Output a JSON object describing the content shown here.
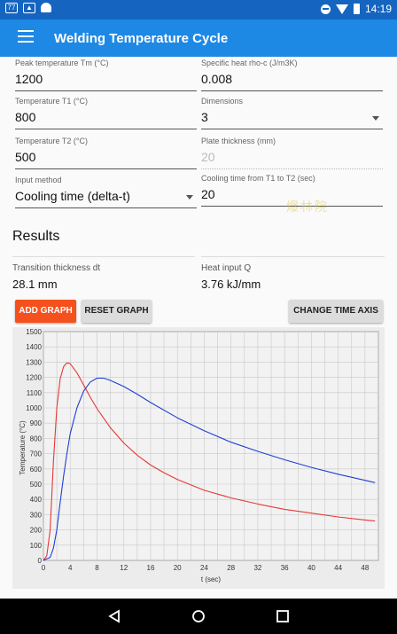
{
  "status_bar": {
    "left_icons": [
      "badge-77",
      "image",
      "android"
    ],
    "badge_text": "77",
    "time": "14:19"
  },
  "app_bar": {
    "title": "Welding Temperature Cycle"
  },
  "form": {
    "peak_temp": {
      "label": "Peak temperature Tm (°C)",
      "value": "1200"
    },
    "specific_heat": {
      "label": "Specific heat rho-c (J/m3K)",
      "value": "0.008"
    },
    "temp_t1": {
      "label": "Temperature T1 (°C)",
      "value": "800"
    },
    "dimensions": {
      "label": "Dimensions",
      "value": "3"
    },
    "temp_t2": {
      "label": "Temperature T2 (°C)",
      "value": "500"
    },
    "plate_thickness": {
      "label": "Plate thickness (mm)",
      "value": "20"
    },
    "input_method": {
      "label": "Input method",
      "value": "Cooling time (delta-t)"
    },
    "cooling_time": {
      "label": "Cooling time from T1 to T2 (sec)",
      "value": "20"
    }
  },
  "watermark": "爆林院",
  "results": {
    "title": "Results",
    "transition_label": "Transition thickness dt",
    "transition_value": "28.1 mm",
    "heat_label": "Heat input Q",
    "heat_value": "3.76 kJ/mm"
  },
  "buttons": {
    "add_graph": "ADD GRAPH",
    "reset_graph": "RESET GRAPH",
    "change_time_axis": "CHANGE TIME AXIS"
  },
  "colors": {
    "app_bar": "#1e88e5",
    "status_bar": "#1565c0",
    "add_button": "#f4511e",
    "series_red": "#e53935",
    "series_blue": "#1e3fd6"
  },
  "chart_data": {
    "type": "line",
    "xlabel": "t (sec)",
    "ylabel": "Temperature (°C)",
    "xlim": [
      0,
      50
    ],
    "ylim": [
      0,
      1500
    ],
    "xticks": [
      0,
      4,
      8,
      12,
      16,
      20,
      24,
      28,
      32,
      36,
      40,
      44,
      48
    ],
    "yticks": [
      0,
      100,
      200,
      300,
      400,
      500,
      600,
      700,
      800,
      900,
      1000,
      1100,
      1200,
      1300,
      1400,
      1500
    ],
    "grid": true,
    "series": [
      {
        "color": "#e53935",
        "x": [
          0.0,
          0.5,
          1.0,
          1.5,
          2.0,
          2.5,
          3.0,
          3.5,
          4.0,
          5.0,
          6.0,
          7.0,
          8.0,
          10.0,
          12.0,
          14.0,
          16.0,
          18.0,
          20.0,
          24.0,
          28.0,
          32.0,
          36.0,
          40.0,
          44.0,
          48.0,
          49.5
        ],
        "y": [
          0,
          30,
          200,
          650,
          1000,
          1190,
          1270,
          1295,
          1290,
          1230,
          1150,
          1070,
          995,
          870,
          770,
          690,
          625,
          575,
          530,
          460,
          410,
          370,
          335,
          310,
          285,
          265,
          258
        ]
      },
      {
        "color": "#1e3fd6",
        "x": [
          0.0,
          0.5,
          1.0,
          1.5,
          2.0,
          2.5,
          3.0,
          3.5,
          4.0,
          5.0,
          6.0,
          7.0,
          8.0,
          9.0,
          10.0,
          12.0,
          14.0,
          16.0,
          20.0,
          24.0,
          28.0,
          32.0,
          36.0,
          40.0,
          44.0,
          48.0,
          49.5
        ],
        "y": [
          0,
          10,
          20,
          80,
          200,
          380,
          550,
          700,
          830,
          1000,
          1110,
          1170,
          1195,
          1195,
          1180,
          1140,
          1090,
          1035,
          935,
          850,
          775,
          715,
          660,
          610,
          565,
          525,
          510
        ]
      }
    ]
  }
}
